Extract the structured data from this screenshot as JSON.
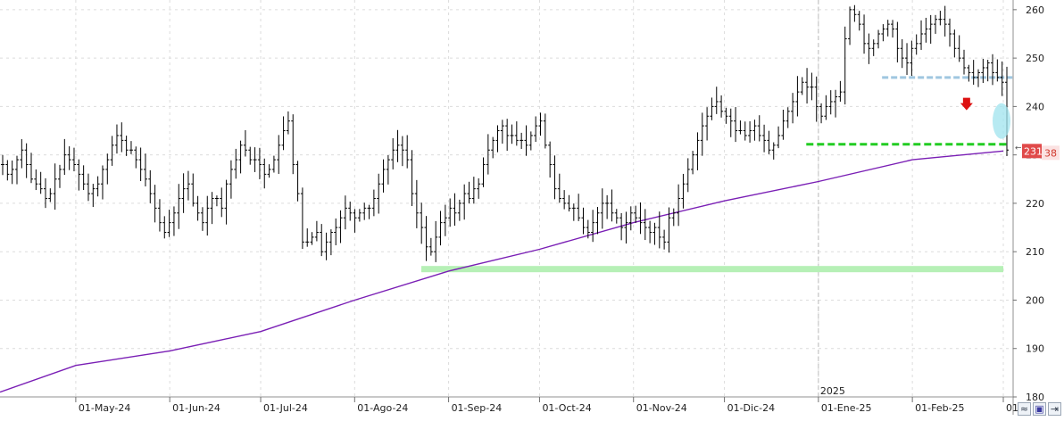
{
  "chart_data": {
    "type": "ohlc",
    "x_ticks": [
      "01-May-24",
      "01-Jun-24",
      "01-Jul-24",
      "01-Ago-24",
      "01-Sep-24",
      "01-Oct-24",
      "01-Nov-24",
      "01-Dic-24",
      "01-Ene-25",
      "01-Feb-25",
      "01-..."
    ],
    "y_ticks": [
      180,
      190,
      200,
      210,
      220,
      230,
      240,
      250,
      260
    ],
    "ylim": [
      180,
      262
    ],
    "year_marker": "2025",
    "price_label": "231",
    "price_sub_label": "38",
    "support_high": 232,
    "support_low": 206.5,
    "resistance": 246,
    "moving_average": {
      "start_date": "2024-04-06",
      "start": 181.0,
      "points": [
        [
          "2024-05-01",
          186.5
        ],
        [
          "2024-06-01",
          189.5
        ],
        [
          "2024-07-01",
          193.5
        ],
        [
          "2024-08-01",
          200.0
        ],
        [
          "2024-09-01",
          206.0
        ],
        [
          "2024-10-01",
          210.5
        ],
        [
          "2024-11-01",
          216.0
        ],
        [
          "2024-12-01",
          220.5
        ],
        [
          "2025-01-01",
          224.5
        ],
        [
          "2025-02-01",
          229.0
        ],
        [
          "2025-03-03",
          230.8
        ]
      ]
    },
    "closes": [
      228,
      226,
      227,
      229,
      231,
      228,
      225,
      224,
      223,
      221,
      222,
      225,
      227,
      230,
      229,
      228,
      226,
      224,
      222,
      223,
      224,
      227,
      229,
      232,
      234,
      233,
      231,
      231,
      229,
      227,
      225,
      222,
      219,
      216,
      214,
      216,
      218,
      221,
      223,
      224,
      220,
      218,
      216,
      219,
      221,
      221,
      219,
      224,
      227,
      229,
      232,
      231,
      229,
      229,
      228,
      226,
      227,
      229,
      232,
      235,
      237,
      228,
      222,
      212,
      212,
      213,
      214,
      210,
      212,
      214,
      215,
      217,
      219,
      218,
      217,
      218,
      219,
      219,
      221,
      224,
      227,
      229,
      231,
      232,
      231,
      229,
      222,
      218,
      215,
      211,
      210,
      213,
      216,
      217,
      219,
      218,
      220,
      222,
      221,
      223,
      224,
      228,
      231,
      233,
      235,
      236,
      234,
      234,
      233,
      233,
      232,
      234,
      236,
      237,
      232,
      228,
      223,
      221,
      220,
      219,
      219,
      217,
      215,
      214,
      216,
      218,
      220,
      220,
      218,
      217,
      215,
      216,
      218,
      217,
      216,
      215,
      214,
      215,
      213,
      212,
      217,
      218,
      221,
      224,
      227,
      230,
      233,
      236,
      238,
      240,
      241,
      239,
      238,
      237,
      235,
      235,
      234,
      235,
      236,
      234,
      233,
      231,
      232,
      234,
      237,
      239,
      241,
      243,
      245,
      244,
      244,
      240,
      238,
      240,
      241,
      242,
      243,
      254,
      260,
      259,
      257,
      253,
      252,
      253,
      255,
      256,
      257,
      256,
      252,
      250,
      249,
      252,
      253,
      255,
      256,
      257,
      258,
      258,
      257,
      255,
      252,
      250,
      248,
      247,
      246,
      247,
      248,
      249,
      247,
      246,
      245,
      231
    ]
  },
  "toolbar": {
    "corner_icon": "wave-icon",
    "save_icon": "floppy-icon",
    "arrow_icon": "arrow-right-icon"
  },
  "colors": {
    "bars": "#000000",
    "moving_average": "#7a1fb5",
    "support_low": "#b6f0b6",
    "support_high": "#22cc22",
    "resistance": "#9fc6e0",
    "down_arrow": "#dd1111",
    "highlight_ellipse": "#9fe3ee",
    "price_label": "#e04a4a"
  }
}
